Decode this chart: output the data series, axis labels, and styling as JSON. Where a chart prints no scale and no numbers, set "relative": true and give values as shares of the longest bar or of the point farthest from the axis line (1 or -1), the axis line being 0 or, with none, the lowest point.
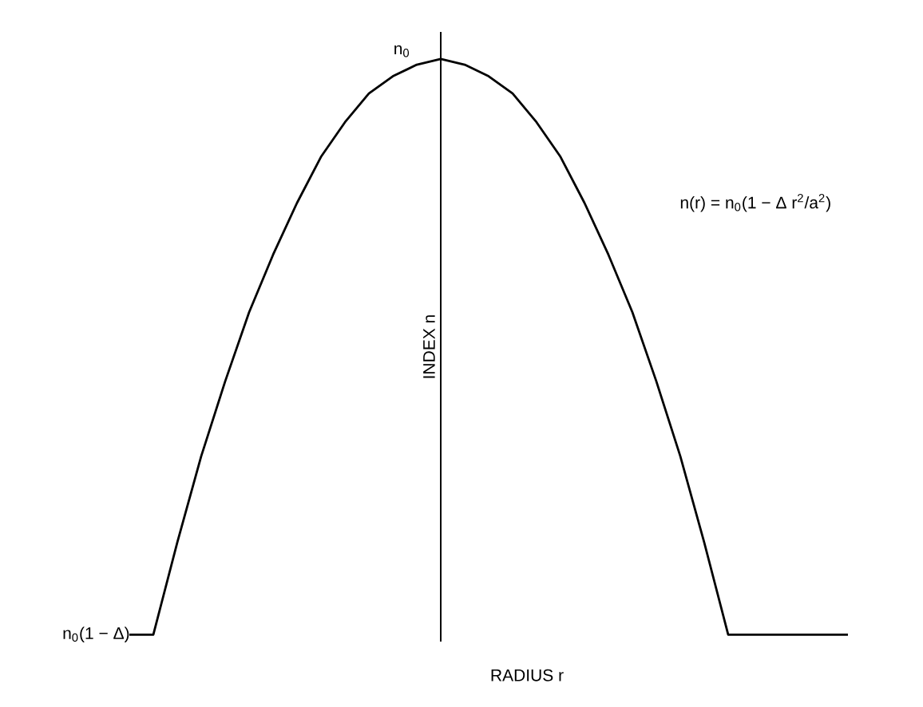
{
  "chart_data": {
    "type": "line",
    "relative": true,
    "color": "#000000",
    "xlabel": "RADIUS r",
    "ylabel": "INDEX n",
    "categories": [
      null,
      null,
      null,
      null,
      null,
      null,
      null,
      null,
      null,
      null,
      null,
      null,
      null,
      null,
      null,
      null,
      null,
      null,
      null,
      null,
      null,
      null,
      null,
      null,
      null,
      null,
      null,
      null,
      null,
      null,
      null
    ],
    "values": [
      0,
      0,
      0.16,
      0.31,
      0.44,
      0.56,
      0.66,
      0.75,
      0.83,
      0.89,
      0.94,
      0.97,
      0.99,
      1,
      0.99,
      0.97,
      0.94,
      0.89,
      0.83,
      0.75,
      0.66,
      0.56,
      0.44,
      0.31,
      0.16,
      0,
      0,
      0,
      0,
      0,
      0
    ],
    "annotations": [
      "n$_{0}$",
      "n$_{0}$(1 − Δ)",
      "n(r) = n$_{0}$(1 − Δ r$^{2}$/a$^{2}$)"
    ]
  }
}
